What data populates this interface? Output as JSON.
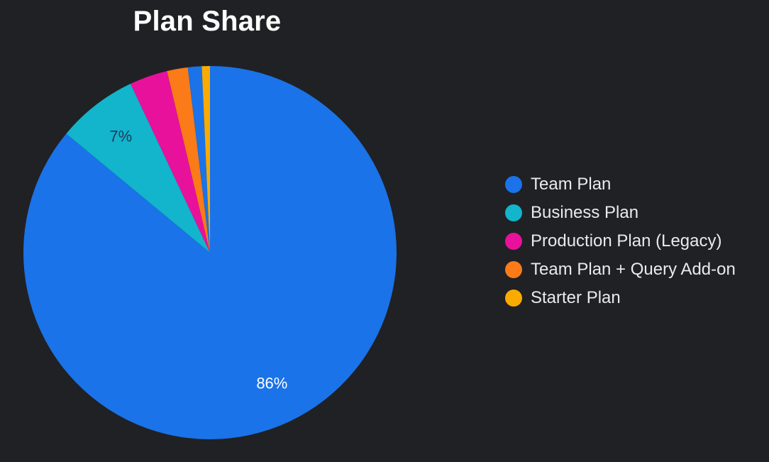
{
  "chart_data": {
    "type": "pie",
    "title": "Plan Share",
    "legend_position": "right",
    "series": [
      {
        "name": "Team Plan",
        "value": 86,
        "label": "86%",
        "color": "#1a73e8"
      },
      {
        "name": "Business Plan",
        "value": 7,
        "label": "7%",
        "color": "#12b5cb"
      },
      {
        "name": "Production Plan (Legacy)",
        "value": 3.3,
        "label": "",
        "color": "#e8119b"
      },
      {
        "name": "Team Plan + Query Add-on",
        "value": 1.8,
        "label": "",
        "color": "#fa7b17"
      },
      {
        "name": "",
        "value": 1.2,
        "label": "",
        "color": "#1a73e8"
      },
      {
        "name": "Starter Plan",
        "value": 0.7,
        "label": "",
        "color": "#f9ab00"
      }
    ],
    "slice_label_colors": [
      "#ffffff",
      "#1a3a5c"
    ]
  }
}
